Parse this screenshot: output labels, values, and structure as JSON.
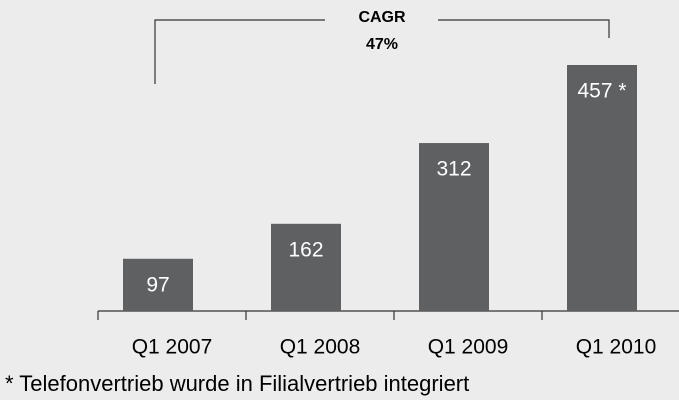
{
  "chart_data": {
    "type": "bar",
    "categories": [
      "Q1 2007",
      "Q1 2008",
      "Q1 2009",
      "Q1 2010"
    ],
    "values": [
      97,
      162,
      312,
      457
    ],
    "value_labels": [
      "97",
      "162",
      "312",
      "457 *"
    ],
    "color": "#5f6062",
    "annotation": {
      "title": "CAGR",
      "value": "47%"
    },
    "footnote": "* Telefonvertrieb wurde in Filialvertrieb integriert"
  }
}
